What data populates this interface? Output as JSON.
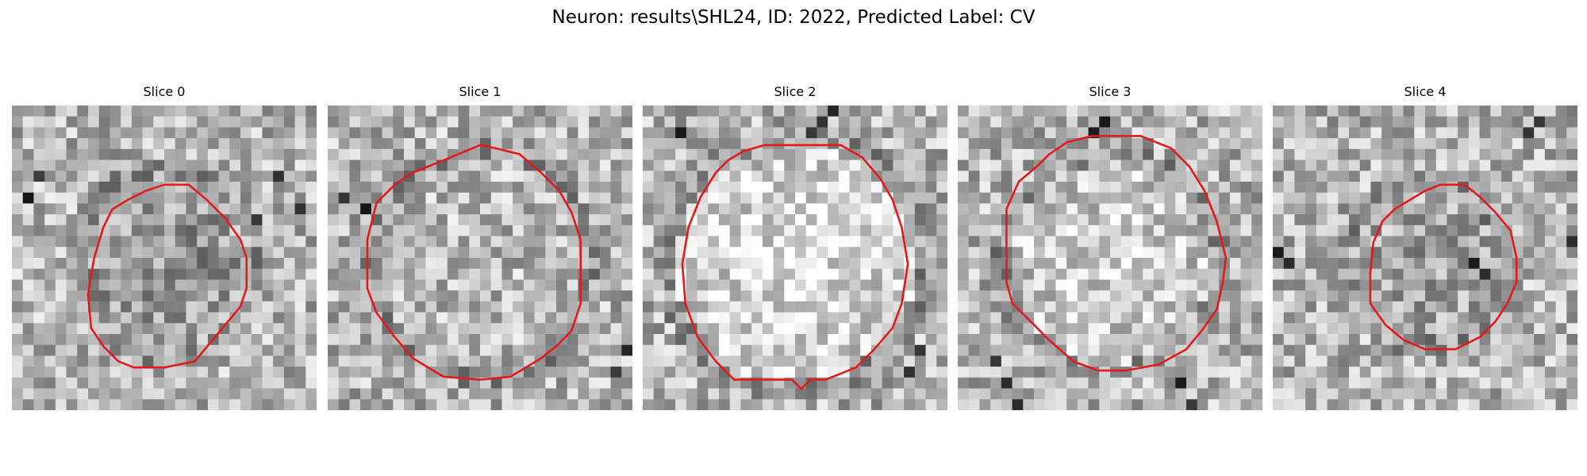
{
  "figure": {
    "title": "Neuron: results\\SHL24, ID: 2022, Predicted Label: CV"
  },
  "colors": {
    "contour": "#e31a1c"
  },
  "panels": [
    {
      "title": "Slice 0",
      "seed": 11,
      "disk": {
        "r": 0.28,
        "delta": -30
      },
      "dark": [
        [
          1,
          8
        ],
        [
          2,
          6
        ],
        [
          26,
          9
        ],
        [
          24,
          6
        ],
        [
          22,
          10
        ]
      ],
      "contour": [
        [
          0.5,
          0.26
        ],
        [
          0.58,
          0.26
        ],
        [
          0.64,
          0.31
        ],
        [
          0.7,
          0.37
        ],
        [
          0.75,
          0.44
        ],
        [
          0.77,
          0.5
        ],
        [
          0.77,
          0.6
        ],
        [
          0.75,
          0.66
        ],
        [
          0.7,
          0.72
        ],
        [
          0.65,
          0.78
        ],
        [
          0.6,
          0.84
        ],
        [
          0.5,
          0.86
        ],
        [
          0.4,
          0.86
        ],
        [
          0.35,
          0.84
        ],
        [
          0.3,
          0.79
        ],
        [
          0.26,
          0.73
        ],
        [
          0.25,
          0.62
        ],
        [
          0.27,
          0.5
        ],
        [
          0.3,
          0.4
        ],
        [
          0.33,
          0.34
        ],
        [
          0.38,
          0.31
        ],
        [
          0.44,
          0.28
        ]
      ]
    },
    {
      "title": "Slice 1",
      "seed": 23,
      "disk": {
        "r": 0.34,
        "delta": 5
      },
      "dark": [
        [
          1,
          8
        ],
        [
          3,
          9
        ],
        [
          27,
          22
        ],
        [
          26,
          24
        ]
      ],
      "contour": [
        [
          0.38,
          0.18
        ],
        [
          0.5,
          0.13
        ],
        [
          0.55,
          0.14
        ],
        [
          0.63,
          0.16
        ],
        [
          0.7,
          0.22
        ],
        [
          0.76,
          0.28
        ],
        [
          0.8,
          0.35
        ],
        [
          0.83,
          0.44
        ],
        [
          0.83,
          0.65
        ],
        [
          0.8,
          0.74
        ],
        [
          0.75,
          0.79
        ],
        [
          0.7,
          0.83
        ],
        [
          0.6,
          0.89
        ],
        [
          0.5,
          0.9
        ],
        [
          0.38,
          0.89
        ],
        [
          0.28,
          0.83
        ],
        [
          0.22,
          0.76
        ],
        [
          0.16,
          0.68
        ],
        [
          0.13,
          0.6
        ],
        [
          0.13,
          0.44
        ],
        [
          0.16,
          0.32
        ],
        [
          0.22,
          0.26
        ],
        [
          0.28,
          0.22
        ]
      ]
    },
    {
      "title": "Slice 2",
      "seed": 37,
      "disk": {
        "r": 0.39,
        "delta": 45
      },
      "dark": [
        [
          16,
          1
        ],
        [
          17,
          0
        ],
        [
          15,
          2
        ],
        [
          25,
          22
        ],
        [
          24,
          24
        ],
        [
          3,
          2
        ]
      ],
      "contour": [
        [
          0.33,
          0.15
        ],
        [
          0.4,
          0.13
        ],
        [
          0.65,
          0.13
        ],
        [
          0.72,
          0.17
        ],
        [
          0.78,
          0.24
        ],
        [
          0.82,
          0.31
        ],
        [
          0.85,
          0.4
        ],
        [
          0.87,
          0.52
        ],
        [
          0.85,
          0.65
        ],
        [
          0.82,
          0.73
        ],
        [
          0.76,
          0.8
        ],
        [
          0.7,
          0.86
        ],
        [
          0.6,
          0.9
        ],
        [
          0.55,
          0.9
        ],
        [
          0.52,
          0.93
        ],
        [
          0.49,
          0.9
        ],
        [
          0.3,
          0.9
        ],
        [
          0.24,
          0.84
        ],
        [
          0.18,
          0.76
        ],
        [
          0.14,
          0.65
        ],
        [
          0.13,
          0.52
        ],
        [
          0.15,
          0.4
        ],
        [
          0.19,
          0.3
        ],
        [
          0.24,
          0.22
        ],
        [
          0.28,
          0.18
        ]
      ]
    },
    {
      "title": "Slice 3",
      "seed": 51,
      "disk": {
        "r": 0.33,
        "delta": 30
      },
      "dark": [
        [
          3,
          23
        ],
        [
          4,
          25
        ],
        [
          5,
          27
        ],
        [
          20,
          25
        ],
        [
          21,
          27
        ],
        [
          12,
          2
        ],
        [
          13,
          1
        ]
      ],
      "contour": [
        [
          0.36,
          0.12
        ],
        [
          0.44,
          0.1
        ],
        [
          0.6,
          0.1
        ],
        [
          0.7,
          0.14
        ],
        [
          0.76,
          0.2
        ],
        [
          0.81,
          0.28
        ],
        [
          0.85,
          0.38
        ],
        [
          0.88,
          0.5
        ],
        [
          0.87,
          0.58
        ],
        [
          0.85,
          0.67
        ],
        [
          0.8,
          0.74
        ],
        [
          0.75,
          0.8
        ],
        [
          0.66,
          0.85
        ],
        [
          0.55,
          0.87
        ],
        [
          0.46,
          0.87
        ],
        [
          0.38,
          0.84
        ],
        [
          0.3,
          0.77
        ],
        [
          0.24,
          0.71
        ],
        [
          0.18,
          0.65
        ],
        [
          0.16,
          0.58
        ],
        [
          0.16,
          0.34
        ],
        [
          0.2,
          0.25
        ],
        [
          0.26,
          0.2
        ],
        [
          0.3,
          0.16
        ]
      ]
    },
    {
      "title": "Slice 4",
      "seed": 67,
      "disk": {
        "r": 0.24,
        "delta": -15
      },
      "dark": [
        [
          23,
          2
        ],
        [
          24,
          1
        ],
        [
          18,
          14
        ],
        [
          19,
          15
        ],
        [
          0,
          13
        ],
        [
          1,
          14
        ],
        [
          27,
          12
        ]
      ],
      "contour": [
        [
          0.55,
          0.26
        ],
        [
          0.63,
          0.26
        ],
        [
          0.68,
          0.3
        ],
        [
          0.73,
          0.35
        ],
        [
          0.78,
          0.41
        ],
        [
          0.8,
          0.5
        ],
        [
          0.8,
          0.58
        ],
        [
          0.77,
          0.65
        ],
        [
          0.73,
          0.71
        ],
        [
          0.68,
          0.76
        ],
        [
          0.6,
          0.8
        ],
        [
          0.5,
          0.8
        ],
        [
          0.43,
          0.77
        ],
        [
          0.37,
          0.72
        ],
        [
          0.32,
          0.65
        ],
        [
          0.32,
          0.55
        ],
        [
          0.33,
          0.45
        ],
        [
          0.36,
          0.38
        ],
        [
          0.4,
          0.34
        ],
        [
          0.45,
          0.31
        ],
        [
          0.5,
          0.28
        ]
      ]
    }
  ]
}
